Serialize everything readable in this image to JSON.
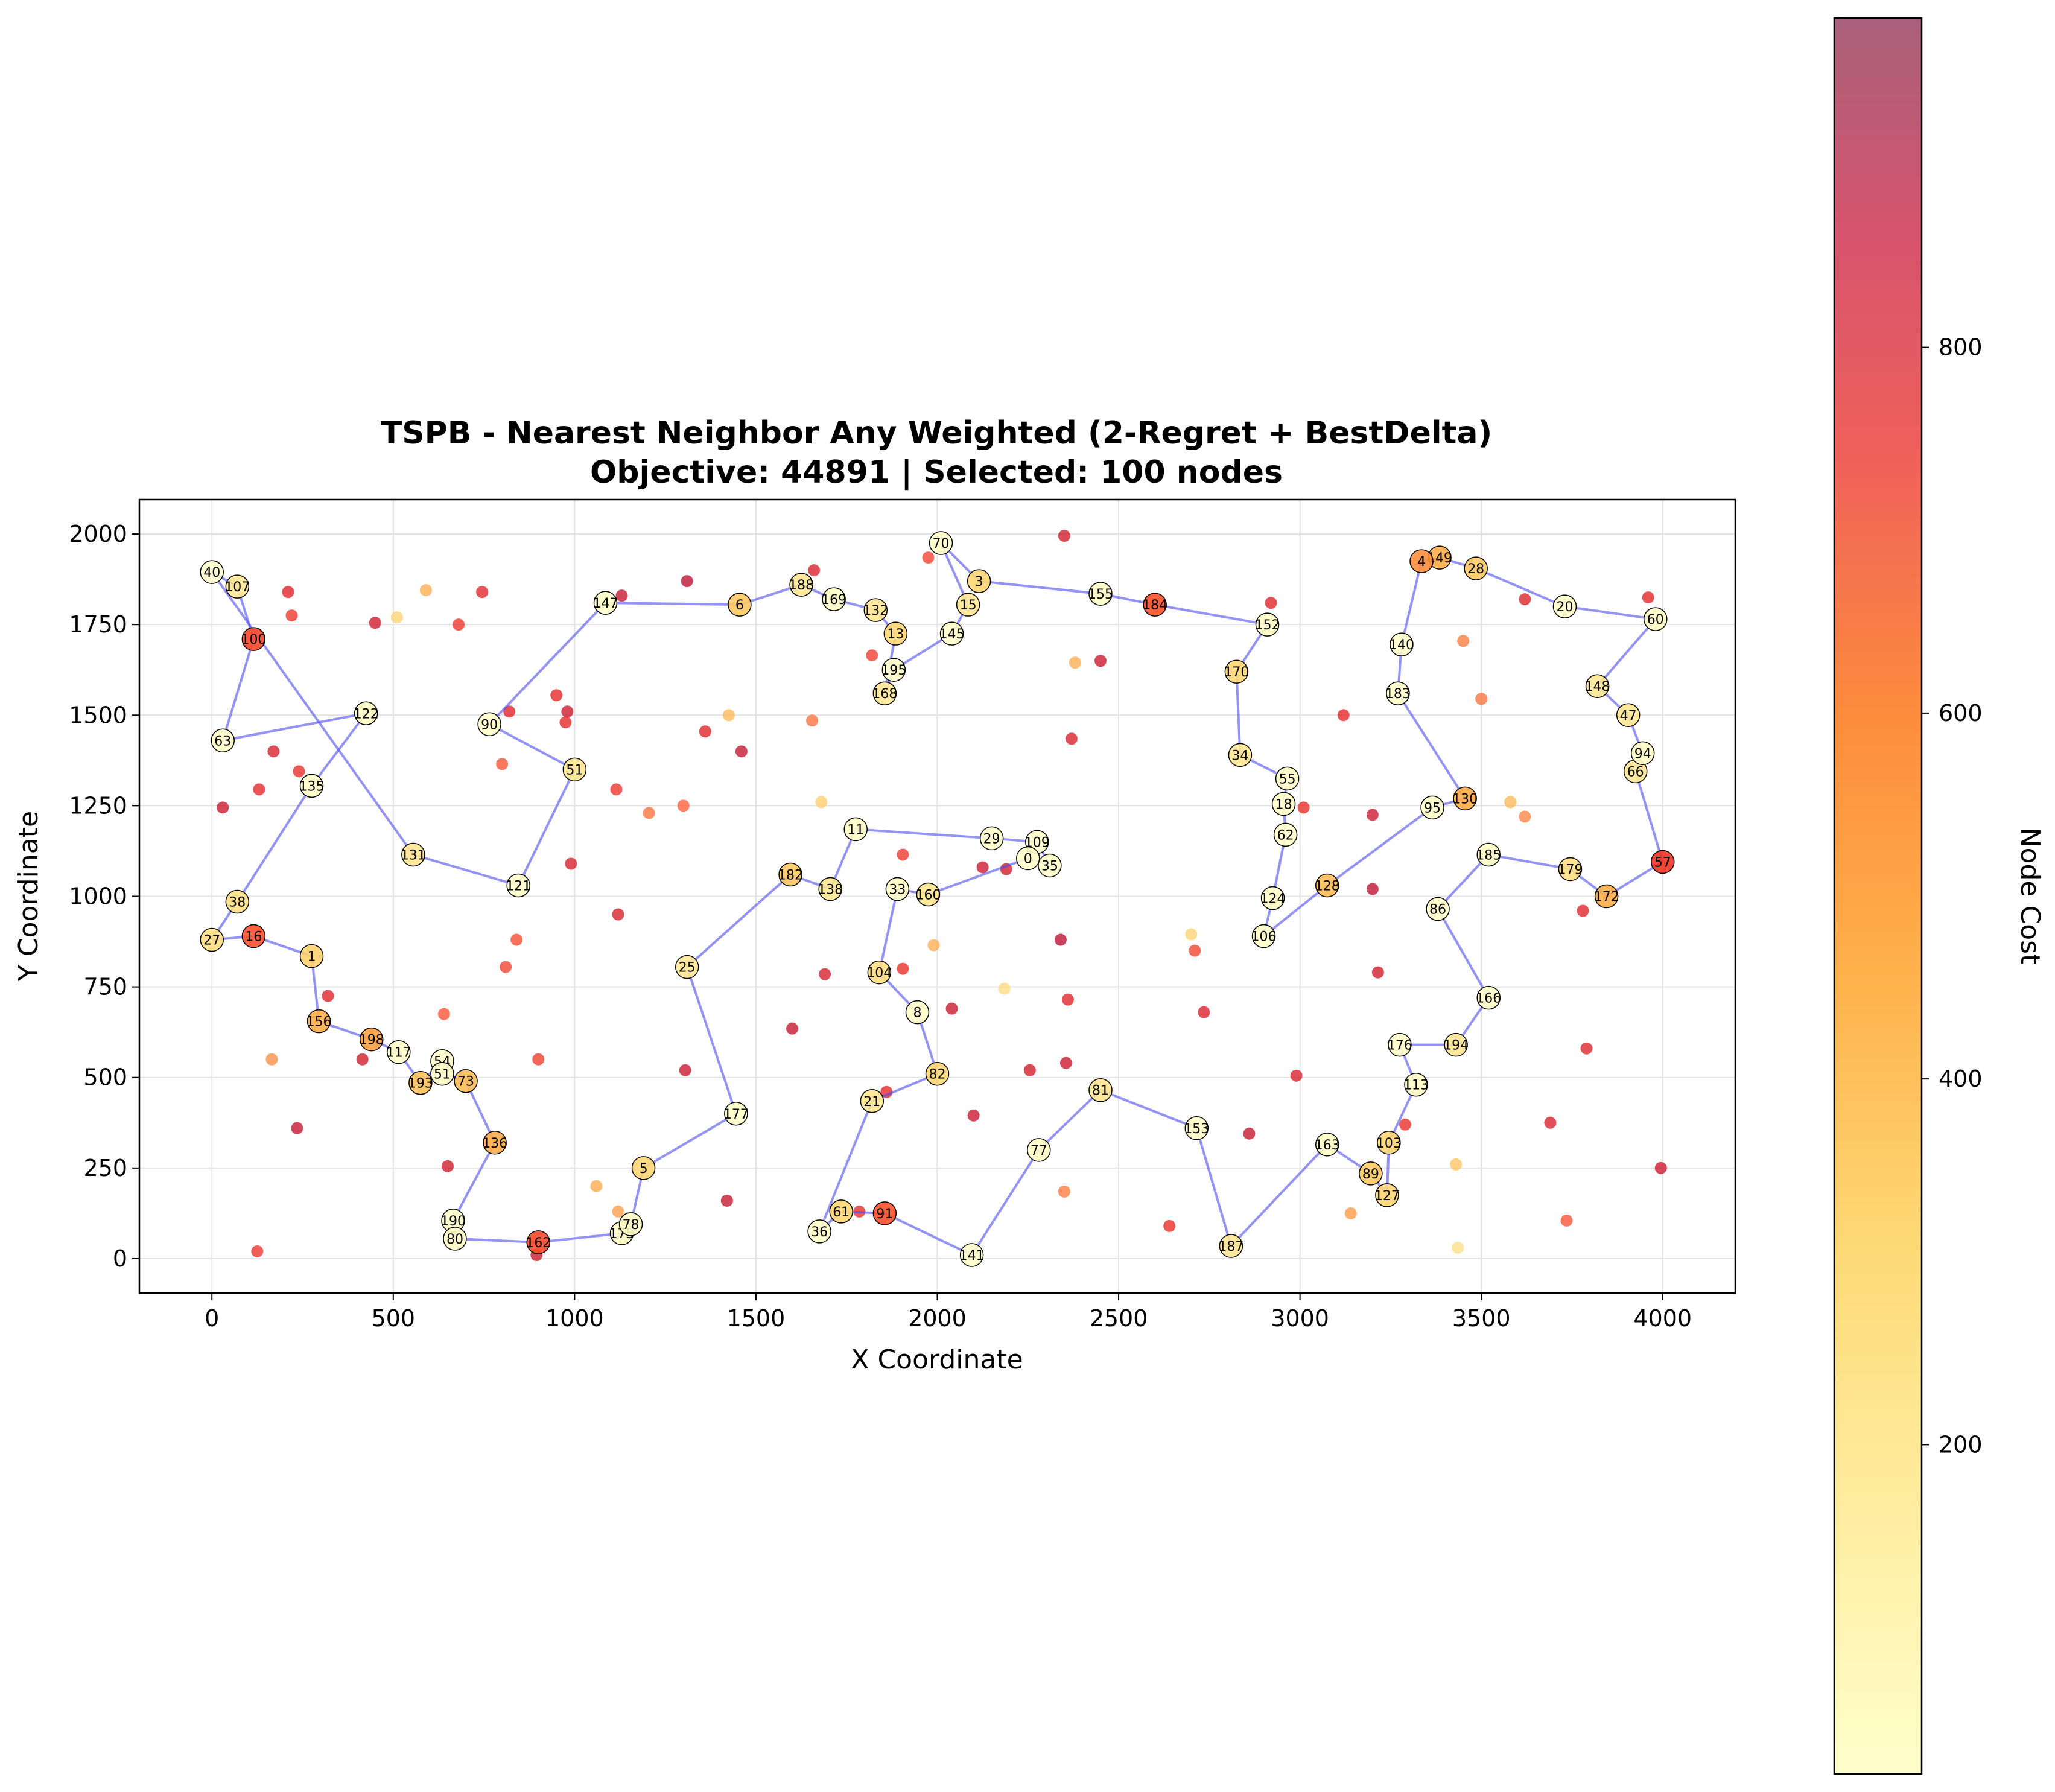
{
  "chart_data": {
    "type": "scatter",
    "title": "TSPB - Nearest Neighbor Any Weighted (2-Regret + BestDelta)",
    "subtitle": "Objective: 44891 | Selected: 100 nodes",
    "xlabel": "X Coordinate",
    "ylabel": "Y Coordinate",
    "xlim": [
      -200,
      4200
    ],
    "ylim": [
      -95,
      2095
    ],
    "xticks": [
      0,
      500,
      1000,
      1500,
      2000,
      2500,
      3000,
      3500,
      4000
    ],
    "yticks": [
      0,
      250,
      500,
      750,
      1000,
      1250,
      1500,
      1750,
      2000
    ],
    "grid": true,
    "colorbar": {
      "label": "Node Cost",
      "min": 20,
      "max": 980,
      "ticks": [
        200,
        400,
        600,
        800
      ],
      "colormap": [
        "#ffffcc",
        "#ffeda0",
        "#fed976",
        "#feb24c",
        "#fd8d3c",
        "#fc4e2a",
        "#e31a1c",
        "#b10026"
      ]
    },
    "route_color": "#4b4bf0",
    "selected_nodes": [
      {
        "id": "40",
        "x": 0,
        "y": 1895,
        "cost": 20
      },
      {
        "id": "107",
        "x": 70,
        "y": 1855,
        "cost": 200
      },
      {
        "id": "100",
        "x": 115,
        "y": 1710,
        "cost": 720
      },
      {
        "id": "63",
        "x": 30,
        "y": 1430,
        "cost": 30
      },
      {
        "id": "122",
        "x": 425,
        "y": 1505,
        "cost": 40
      },
      {
        "id": "135",
        "x": 275,
        "y": 1305,
        "cost": 40
      },
      {
        "id": "38",
        "x": 70,
        "y": 985,
        "cost": 250
      },
      {
        "id": "27",
        "x": 0,
        "y": 880,
        "cost": 250
      },
      {
        "id": "16",
        "x": 115,
        "y": 890,
        "cost": 700
      },
      {
        "id": "1",
        "x": 275,
        "y": 835,
        "cost": 320
      },
      {
        "id": "156",
        "x": 295,
        "y": 655,
        "cost": 450
      },
      {
        "id": "198",
        "x": 440,
        "y": 605,
        "cost": 500
      },
      {
        "id": "117",
        "x": 515,
        "y": 570,
        "cost": 30
      },
      {
        "id": "193",
        "x": 575,
        "y": 485,
        "cost": 380
      },
      {
        "id": "54",
        "x": 635,
        "y": 545,
        "cost": 40
      },
      {
        "id": "51",
        "x": 635,
        "y": 510,
        "cost": 40
      },
      {
        "id": "73",
        "x": 700,
        "y": 490,
        "cost": 400
      },
      {
        "id": "136",
        "x": 780,
        "y": 320,
        "cost": 450
      },
      {
        "id": "190",
        "x": 665,
        "y": 105,
        "cost": 30
      },
      {
        "id": "80",
        "x": 670,
        "y": 55,
        "cost": 40
      },
      {
        "id": "162",
        "x": 900,
        "y": 45,
        "cost": 720
      },
      {
        "id": "175",
        "x": 1130,
        "y": 70,
        "cost": 40
      },
      {
        "id": "78",
        "x": 1155,
        "y": 95,
        "cost": 40
      },
      {
        "id": "5",
        "x": 1190,
        "y": 250,
        "cost": 300
      },
      {
        "id": "177",
        "x": 1445,
        "y": 400,
        "cost": 30
      },
      {
        "id": "25",
        "x": 1310,
        "y": 805,
        "cost": 200
      },
      {
        "id": "182",
        "x": 1595,
        "y": 1060,
        "cost": 350
      },
      {
        "id": "138",
        "x": 1705,
        "y": 1020,
        "cost": 200
      },
      {
        "id": "11",
        "x": 1775,
        "y": 1185,
        "cost": 40
      },
      {
        "id": "29",
        "x": 2150,
        "y": 1160,
        "cost": 30
      },
      {
        "id": "109",
        "x": 2275,
        "y": 1150,
        "cost": 30
      },
      {
        "id": "0",
        "x": 2250,
        "y": 1105,
        "cost": 30
      },
      {
        "id": "35",
        "x": 2310,
        "y": 1085,
        "cost": 30
      },
      {
        "id": "160",
        "x": 1975,
        "y": 1005,
        "cost": 200
      },
      {
        "id": "33",
        "x": 1890,
        "y": 1020,
        "cost": 40
      },
      {
        "id": "104",
        "x": 1840,
        "y": 790,
        "cost": 250
      },
      {
        "id": "8",
        "x": 1945,
        "y": 680,
        "cost": 30
      },
      {
        "id": "82",
        "x": 2000,
        "y": 510,
        "cost": 300
      },
      {
        "id": "21",
        "x": 1820,
        "y": 435,
        "cost": 200
      },
      {
        "id": "36",
        "x": 1675,
        "y": 75,
        "cost": 40
      },
      {
        "id": "61",
        "x": 1735,
        "y": 130,
        "cost": 300
      },
      {
        "id": "91",
        "x": 1855,
        "y": 125,
        "cost": 700
      },
      {
        "id": "141",
        "x": 2095,
        "y": 10,
        "cost": 30
      },
      {
        "id": "77",
        "x": 2280,
        "y": 300,
        "cost": 40
      },
      {
        "id": "81",
        "x": 2450,
        "y": 465,
        "cost": 200
      },
      {
        "id": "153",
        "x": 2715,
        "y": 360,
        "cost": 40
      },
      {
        "id": "187",
        "x": 2810,
        "y": 35,
        "cost": 200
      },
      {
        "id": "163",
        "x": 3075,
        "y": 315,
        "cost": 40
      },
      {
        "id": "89",
        "x": 3195,
        "y": 235,
        "cost": 350
      },
      {
        "id": "127",
        "x": 3240,
        "y": 175,
        "cost": 300
      },
      {
        "id": "103",
        "x": 3245,
        "y": 320,
        "cost": 300
      },
      {
        "id": "113",
        "x": 3320,
        "y": 480,
        "cost": 40
      },
      {
        "id": "176",
        "x": 3275,
        "y": 590,
        "cost": 40
      },
      {
        "id": "194",
        "x": 3430,
        "y": 590,
        "cost": 200
      },
      {
        "id": "166",
        "x": 3520,
        "y": 720,
        "cost": 40
      },
      {
        "id": "86",
        "x": 3380,
        "y": 965,
        "cost": 30
      },
      {
        "id": "185",
        "x": 3520,
        "y": 1115,
        "cost": 40
      },
      {
        "id": "179",
        "x": 3745,
        "y": 1075,
        "cost": 250
      },
      {
        "id": "172",
        "x": 3845,
        "y": 1000,
        "cost": 450
      },
      {
        "id": "57",
        "x": 4000,
        "y": 1095,
        "cost": 780
      },
      {
        "id": "66",
        "x": 3925,
        "y": 1345,
        "cost": 200
      },
      {
        "id": "94",
        "x": 3945,
        "y": 1395,
        "cost": 40
      },
      {
        "id": "47",
        "x": 3905,
        "y": 1500,
        "cost": 200
      },
      {
        "id": "148",
        "x": 3820,
        "y": 1580,
        "cost": 200
      },
      {
        "id": "60",
        "x": 3980,
        "y": 1765,
        "cost": 40
      },
      {
        "id": "20",
        "x": 3730,
        "y": 1800,
        "cost": 30
      },
      {
        "id": "28",
        "x": 3485,
        "y": 1905,
        "cost": 350
      },
      {
        "id": "149",
        "x": 3385,
        "y": 1935,
        "cost": 450
      },
      {
        "id": "4",
        "x": 3335,
        "y": 1925,
        "cost": 560
      },
      {
        "id": "140",
        "x": 3280,
        "y": 1695,
        "cost": 30
      },
      {
        "id": "183",
        "x": 3270,
        "y": 1560,
        "cost": 30
      },
      {
        "id": "130",
        "x": 3455,
        "y": 1270,
        "cost": 450
      },
      {
        "id": "95",
        "x": 3365,
        "y": 1245,
        "cost": 30
      },
      {
        "id": "128",
        "x": 3075,
        "y": 1030,
        "cost": 400
      },
      {
        "id": "106",
        "x": 2900,
        "y": 890,
        "cost": 30
      },
      {
        "id": "124",
        "x": 2925,
        "y": 995,
        "cost": 40
      },
      {
        "id": "62",
        "x": 2960,
        "y": 1170,
        "cost": 30
      },
      {
        "id": "18",
        "x": 2955,
        "y": 1255,
        "cost": 40
      },
      {
        "id": "55",
        "x": 2965,
        "y": 1325,
        "cost": 40
      },
      {
        "id": "34",
        "x": 2835,
        "y": 1390,
        "cost": 200
      },
      {
        "id": "170",
        "x": 2825,
        "y": 1620,
        "cost": 300
      },
      {
        "id": "152",
        "x": 2910,
        "y": 1750,
        "cost": 40
      },
      {
        "id": "184",
        "x": 2600,
        "y": 1805,
        "cost": 700
      },
      {
        "id": "155",
        "x": 2450,
        "y": 1835,
        "cost": 40
      },
      {
        "id": "3",
        "x": 2115,
        "y": 1870,
        "cost": 300
      },
      {
        "id": "70",
        "x": 2010,
        "y": 1975,
        "cost": 30
      },
      {
        "id": "15",
        "x": 2085,
        "y": 1805,
        "cost": 200
      },
      {
        "id": "145",
        "x": 2040,
        "y": 1725,
        "cost": 30
      },
      {
        "id": "195",
        "x": 1880,
        "y": 1625,
        "cost": 30
      },
      {
        "id": "168",
        "x": 1855,
        "y": 1560,
        "cost": 200
      },
      {
        "id": "13",
        "x": 1885,
        "y": 1725,
        "cost": 300
      },
      {
        "id": "132",
        "x": 1830,
        "y": 1790,
        "cost": 200
      },
      {
        "id": "169",
        "x": 1715,
        "y": 1820,
        "cost": 40
      },
      {
        "id": "188",
        "x": 1625,
        "y": 1860,
        "cost": 200
      },
      {
        "id": "6",
        "x": 1455,
        "y": 1805,
        "cost": 350
      },
      {
        "id": "147",
        "x": 1085,
        "y": 1810,
        "cost": 30
      },
      {
        "id": "90",
        "x": 765,
        "y": 1475,
        "cost": 30
      },
      {
        "id": "51b",
        "x": 1000,
        "y": 1350,
        "cost": 200
      },
      {
        "id": "121",
        "x": 845,
        "y": 1030,
        "cost": 30
      },
      {
        "id": "131",
        "x": 555,
        "y": 1115,
        "cost": 200
      }
    ],
    "node_display_labels": {
      "51b": "51",
      "4": "4"
    },
    "route_order": [
      "40",
      "107",
      "100",
      "63",
      "122",
      "135",
      "38",
      "27",
      "16",
      "1",
      "156",
      "198",
      "117",
      "193",
      "54",
      "51",
      "73",
      "136",
      "190",
      "80",
      "162",
      "175",
      "78",
      "5",
      "177",
      "25",
      "182",
      "138",
      "11",
      "29",
      "109",
      "35",
      "0",
      "160",
      "33",
      "104",
      "8",
      "82",
      "21",
      "36",
      "61",
      "91",
      "141",
      "77",
      "81",
      "153",
      "187",
      "163",
      "89",
      "127",
      "103",
      "113",
      "176",
      "194",
      "166",
      "86",
      "185",
      "179",
      "172",
      "57",
      "66",
      "94",
      "47",
      "148",
      "60",
      "20",
      "28",
      "149",
      "4",
      "140",
      "183",
      "130",
      "95",
      "128",
      "106",
      "124",
      "62",
      "18",
      "55",
      "34",
      "170",
      "152",
      "184",
      "155",
      "3",
      "70",
      "15",
      "145",
      "195",
      "168",
      "13",
      "132",
      "169",
      "188",
      "6",
      "147",
      "90",
      "51b",
      "121",
      "131"
    ],
    "unselected_nodes": [
      {
        "x": 210,
        "y": 1840,
        "cost": 860
      },
      {
        "x": 220,
        "y": 1775,
        "cost": 800
      },
      {
        "x": 450,
        "y": 1755,
        "cost": 900
      },
      {
        "x": 510,
        "y": 1770,
        "cost": 320
      },
      {
        "x": 590,
        "y": 1845,
        "cost": 460
      },
      {
        "x": 745,
        "y": 1840,
        "cost": 850
      },
      {
        "x": 680,
        "y": 1750,
        "cost": 800
      },
      {
        "x": 1130,
        "y": 1830,
        "cost": 940
      },
      {
        "x": 1310,
        "y": 1870,
        "cost": 960
      },
      {
        "x": 1660,
        "y": 1900,
        "cost": 880
      },
      {
        "x": 1975,
        "y": 1935,
        "cost": 760
      },
      {
        "x": 2350,
        "y": 1995,
        "cost": 900
      },
      {
        "x": 2920,
        "y": 1810,
        "cost": 860
      },
      {
        "x": 3620,
        "y": 1820,
        "cost": 870
      },
      {
        "x": 3960,
        "y": 1825,
        "cost": 850
      },
      {
        "x": 3450,
        "y": 1705,
        "cost": 620
      },
      {
        "x": 3500,
        "y": 1545,
        "cost": 640
      },
      {
        "x": 3120,
        "y": 1500,
        "cost": 840
      },
      {
        "x": 2380,
        "y": 1645,
        "cost": 460
      },
      {
        "x": 2450,
        "y": 1650,
        "cost": 920
      },
      {
        "x": 1820,
        "y": 1665,
        "cost": 780
      },
      {
        "x": 1425,
        "y": 1500,
        "cost": 420
      },
      {
        "x": 1655,
        "y": 1485,
        "cost": 640
      },
      {
        "x": 1360,
        "y": 1455,
        "cost": 860
      },
      {
        "x": 1460,
        "y": 1400,
        "cost": 940
      },
      {
        "x": 2370,
        "y": 1435,
        "cost": 880
      },
      {
        "x": 820,
        "y": 1510,
        "cost": 860
      },
      {
        "x": 950,
        "y": 1555,
        "cost": 840
      },
      {
        "x": 980,
        "y": 1510,
        "cost": 910
      },
      {
        "x": 975,
        "y": 1480,
        "cost": 850
      },
      {
        "x": 800,
        "y": 1365,
        "cost": 720
      },
      {
        "x": 170,
        "y": 1400,
        "cost": 880
      },
      {
        "x": 240,
        "y": 1345,
        "cost": 820
      },
      {
        "x": 130,
        "y": 1295,
        "cost": 840
      },
      {
        "x": 30,
        "y": 1245,
        "cost": 920
      },
      {
        "x": 1115,
        "y": 1295,
        "cost": 800
      },
      {
        "x": 1205,
        "y": 1230,
        "cost": 640
      },
      {
        "x": 1300,
        "y": 1250,
        "cost": 680
      },
      {
        "x": 1680,
        "y": 1260,
        "cost": 340
      },
      {
        "x": 1905,
        "y": 1115,
        "cost": 800
      },
      {
        "x": 2125,
        "y": 1080,
        "cost": 920
      },
      {
        "x": 2190,
        "y": 1075,
        "cost": 900
      },
      {
        "x": 3010,
        "y": 1245,
        "cost": 820
      },
      {
        "x": 3200,
        "y": 1225,
        "cost": 920
      },
      {
        "x": 3580,
        "y": 1260,
        "cost": 420
      },
      {
        "x": 3620,
        "y": 1220,
        "cost": 600
      },
      {
        "x": 3200,
        "y": 1020,
        "cost": 960
      },
      {
        "x": 3780,
        "y": 960,
        "cost": 860
      },
      {
        "x": 990,
        "y": 1090,
        "cost": 880
      },
      {
        "x": 1120,
        "y": 950,
        "cost": 880
      },
      {
        "x": 840,
        "y": 880,
        "cost": 740
      },
      {
        "x": 810,
        "y": 805,
        "cost": 760
      },
      {
        "x": 1990,
        "y": 865,
        "cost": 460
      },
      {
        "x": 2700,
        "y": 895,
        "cost": 320
      },
      {
        "x": 2710,
        "y": 850,
        "cost": 760
      },
      {
        "x": 2340,
        "y": 880,
        "cost": 960
      },
      {
        "x": 1690,
        "y": 785,
        "cost": 880
      },
      {
        "x": 1905,
        "y": 800,
        "cost": 820
      },
      {
        "x": 2185,
        "y": 745,
        "cost": 280
      },
      {
        "x": 2360,
        "y": 715,
        "cost": 860
      },
      {
        "x": 2040,
        "y": 690,
        "cost": 920
      },
      {
        "x": 2735,
        "y": 680,
        "cost": 880
      },
      {
        "x": 3215,
        "y": 790,
        "cost": 900
      },
      {
        "x": 320,
        "y": 725,
        "cost": 860
      },
      {
        "x": 640,
        "y": 675,
        "cost": 720
      },
      {
        "x": 1600,
        "y": 635,
        "cost": 940
      },
      {
        "x": 165,
        "y": 550,
        "cost": 580
      },
      {
        "x": 415,
        "y": 550,
        "cost": 900
      },
      {
        "x": 900,
        "y": 550,
        "cost": 780
      },
      {
        "x": 1305,
        "y": 520,
        "cost": 920
      },
      {
        "x": 2255,
        "y": 520,
        "cost": 900
      },
      {
        "x": 2355,
        "y": 540,
        "cost": 920
      },
      {
        "x": 2990,
        "y": 505,
        "cost": 880
      },
      {
        "x": 3790,
        "y": 580,
        "cost": 860
      },
      {
        "x": 1860,
        "y": 460,
        "cost": 840
      },
      {
        "x": 2100,
        "y": 395,
        "cost": 920
      },
      {
        "x": 3290,
        "y": 370,
        "cost": 820
      },
      {
        "x": 3690,
        "y": 375,
        "cost": 880
      },
      {
        "x": 235,
        "y": 360,
        "cost": 940
      },
      {
        "x": 2860,
        "y": 345,
        "cost": 930
      },
      {
        "x": 650,
        "y": 255,
        "cost": 900
      },
      {
        "x": 3430,
        "y": 260,
        "cost": 380
      },
      {
        "x": 3995,
        "y": 250,
        "cost": 920
      },
      {
        "x": 1060,
        "y": 200,
        "cost": 480
      },
      {
        "x": 2350,
        "y": 185,
        "cost": 620
      },
      {
        "x": 1420,
        "y": 160,
        "cost": 930
      },
      {
        "x": 1120,
        "y": 130,
        "cost": 520
      },
      {
        "x": 1785,
        "y": 130,
        "cost": 820
      },
      {
        "x": 3140,
        "y": 125,
        "cost": 540
      },
      {
        "x": 3735,
        "y": 105,
        "cost": 720
      },
      {
        "x": 2640,
        "y": 90,
        "cost": 820
      },
      {
        "x": 3435,
        "y": 30,
        "cost": 260
      },
      {
        "x": 125,
        "y": 20,
        "cost": 800
      },
      {
        "x": 895,
        "y": 10,
        "cost": 920
      }
    ]
  }
}
